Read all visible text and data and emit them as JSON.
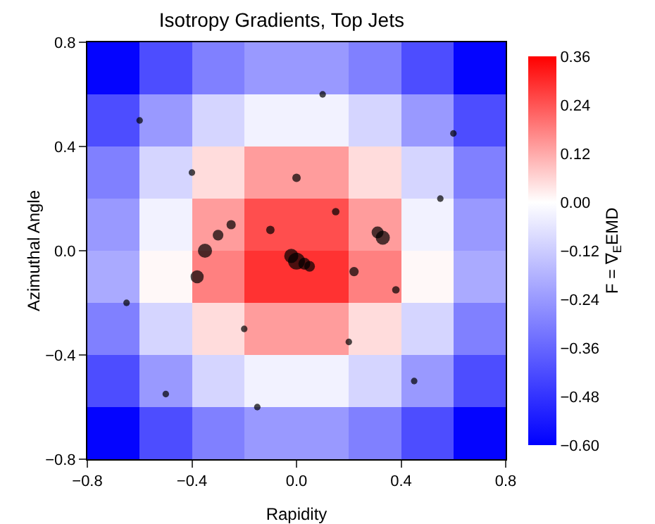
{
  "chart_data": {
    "type": "heatmap",
    "title": "Isotropy Gradients, Top Jets",
    "xlabel": "Rapidity",
    "ylabel": "Azimuthal Angle",
    "clabel": "F = ∇$_{E}$EMD",
    "x": [
      -0.7,
      -0.5,
      -0.3,
      -0.1,
      0.1,
      0.3,
      0.5,
      0.7
    ],
    "y": [
      0.7,
      0.5,
      0.3,
      0.1,
      -0.1,
      -0.3,
      -0.5,
      -0.7
    ],
    "cells": [
      [
        -0.59,
        -0.42,
        -0.3,
        -0.24,
        -0.24,
        -0.3,
        -0.42,
        -0.59
      ],
      [
        -0.42,
        -0.24,
        -0.1,
        -0.03,
        -0.03,
        -0.1,
        -0.24,
        -0.42
      ],
      [
        -0.3,
        -0.1,
        0.05,
        0.14,
        0.14,
        0.05,
        -0.1,
        -0.3
      ],
      [
        -0.24,
        -0.03,
        0.14,
        0.25,
        0.25,
        0.14,
        -0.03,
        -0.24
      ],
      [
        -0.2,
        0.01,
        0.18,
        0.29,
        0.29,
        0.18,
        0.01,
        -0.2
      ],
      [
        -0.3,
        -0.1,
        0.05,
        0.14,
        0.14,
        0.05,
        -0.1,
        -0.3
      ],
      [
        -0.42,
        -0.24,
        -0.1,
        -0.03,
        -0.03,
        -0.1,
        -0.24,
        -0.42
      ],
      [
        -0.59,
        -0.42,
        -0.3,
        -0.24,
        -0.24,
        -0.3,
        -0.42,
        -0.59
      ]
    ],
    "clim": [
      -0.6,
      0.36
    ],
    "cticks": [
      {
        "value": 0.36,
        "label": "0.36"
      },
      {
        "value": 0.24,
        "label": "0.24"
      },
      {
        "value": 0.12,
        "label": "0.12"
      },
      {
        "value": 0,
        "label": "0.00"
      },
      {
        "value": -0.12,
        "label": "−0.12"
      },
      {
        "value": -0.24,
        "label": "−0.24"
      },
      {
        "value": -0.36,
        "label": "−0.36"
      },
      {
        "value": -0.48,
        "label": "−0.48"
      },
      {
        "value": -0.6,
        "label": "−0.60"
      }
    ],
    "series": [
      {
        "type": "bubble",
        "color": "#000000",
        "x": [
          0.0,
          -0.02,
          0.03,
          -0.35,
          0.33,
          -0.38,
          0.31,
          -0.3,
          -0.25,
          0.05,
          0.22,
          0.0,
          -0.1,
          0.15,
          -0.6,
          0.6,
          -0.5,
          0.45,
          -0.2,
          0.2,
          0.38,
          -0.4,
          0.1,
          -0.15,
          0.55,
          -0.65
        ],
        "values": [
          -0.04,
          -0.02,
          -0.05,
          0.0,
          0.05,
          -0.1,
          0.07,
          0.06,
          0.1,
          -0.06,
          -0.08,
          0.28,
          0.08,
          0.15,
          0.5,
          0.45,
          -0.55,
          -0.5,
          -0.3,
          -0.35,
          -0.15,
          0.3,
          0.6,
          -0.6,
          0.2,
          -0.2
        ],
        "sizes": [
          1,
          0.7,
          0.5,
          0.7,
          0.7,
          0.6,
          0.5,
          0.4,
          0.3,
          0.4,
          0.3,
          0.25,
          0.25,
          0.2,
          0.15,
          0.15,
          0.15,
          0.15,
          0.15,
          0.15,
          0.2,
          0.15,
          0.15,
          0.15,
          0.15,
          0.15
        ]
      }
    ],
    "xlim": [
      -0.8,
      0.8
    ],
    "ylim": [
      -0.8,
      0.8
    ],
    "xticks": [
      {
        "value": -0.8,
        "label": "−0.8"
      },
      {
        "value": -0.4,
        "label": "−0.4"
      },
      {
        "value": 0,
        "label": "0.0"
      },
      {
        "value": 0.4,
        "label": "0.4"
      },
      {
        "value": 0.8,
        "label": "0.8"
      }
    ],
    "yticks": [
      {
        "value": -0.8,
        "label": "−0.8"
      },
      {
        "value": -0.4,
        "label": "−0.4"
      },
      {
        "value": 0,
        "label": "0.0"
      },
      {
        "value": 0.4,
        "label": "0.4"
      },
      {
        "value": 0.8,
        "label": "0.8"
      }
    ]
  }
}
